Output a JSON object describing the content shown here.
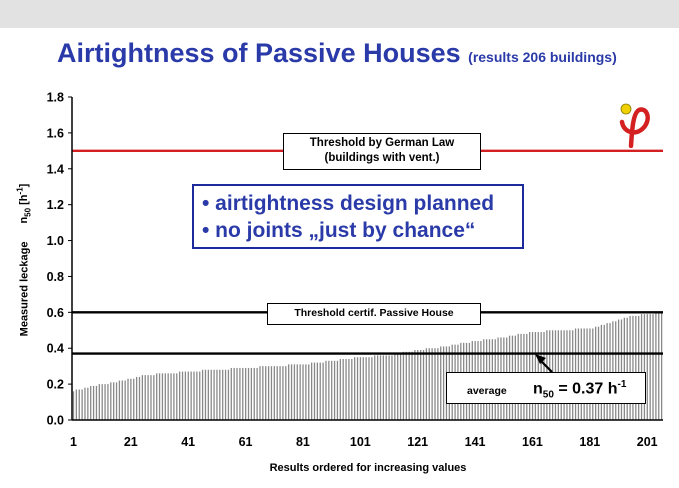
{
  "title": {
    "main": "Airtightness of Passive Houses",
    "sub": "(results 206 buildings)"
  },
  "chart_data": {
    "type": "bar",
    "n": 206,
    "x_ticks": [
      "1",
      "21",
      "41",
      "61",
      "81",
      "101",
      "121",
      "141",
      "161",
      "181",
      "201"
    ],
    "xlabel": "Results ordered for increasing values",
    "ylabel": {
      "prefix": "Measured leckage",
      "symbol": "n",
      "symbol_sub": "50",
      "unit_open": "[h",
      "unit_sup": "-1",
      "unit_close": "]"
    },
    "ylim": [
      0,
      1.8
    ],
    "y_ticks": [
      "0.0",
      "0.2",
      "0.4",
      "0.6",
      "0.8",
      "1.0",
      "1.2",
      "1.4",
      "1.6",
      "1.8"
    ],
    "grid": false,
    "bar_color": "#888888",
    "value_profile": [
      [
        1,
        0.16
      ],
      [
        3,
        0.17
      ],
      [
        8,
        0.19
      ],
      [
        12,
        0.2
      ],
      [
        21,
        0.23
      ],
      [
        26,
        0.25
      ],
      [
        41,
        0.27
      ],
      [
        51,
        0.28
      ],
      [
        61,
        0.29
      ],
      [
        81,
        0.31
      ],
      [
        101,
        0.35
      ],
      [
        111,
        0.36
      ],
      [
        121,
        0.39
      ],
      [
        131,
        0.41
      ],
      [
        141,
        0.44
      ],
      [
        151,
        0.46
      ],
      [
        161,
        0.49
      ],
      [
        171,
        0.5
      ],
      [
        181,
        0.51
      ],
      [
        186,
        0.53
      ],
      [
        191,
        0.56
      ],
      [
        196,
        0.58
      ],
      [
        201,
        0.59
      ],
      [
        206,
        0.6
      ]
    ],
    "reference_lines": [
      {
        "name": "Threshold by German Law",
        "value": 1.5,
        "color": "#d42020"
      },
      {
        "name": "Threshold certif. Passive House",
        "value": 0.6,
        "color": "#000000"
      },
      {
        "name": "average",
        "value": 0.37,
        "color": "#000000"
      }
    ]
  },
  "annotations": {
    "law_line1": "Threshold by German Law",
    "law_line2": "(buildings with vent.)",
    "ph": "Threshold  certif. Passive  House",
    "avg_label": "average",
    "avg_symbol": "n",
    "avg_sub": "50",
    "avg_eq": " = 0.37 h",
    "avg_sup": "-1",
    "design_1": "• airtightness design planned",
    "design_2": "• no joints „just by chance“"
  },
  "colors": {
    "title": "#2a3aa8",
    "design_border": "#1c2a9c",
    "logo_yellow": "#f0d000",
    "logo_red": "#d42020"
  },
  "logo": {
    "icon": "phi-logo-icon"
  }
}
